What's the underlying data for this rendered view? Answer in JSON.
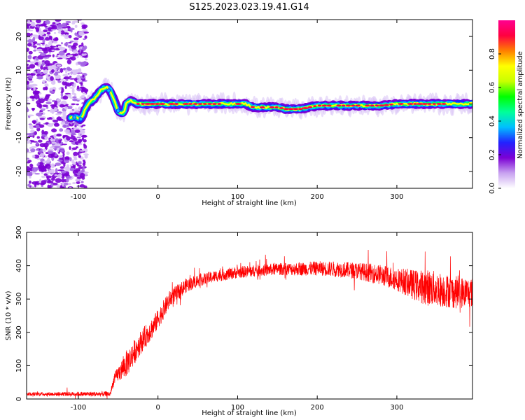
{
  "title": "S125.2023.023.19.41.G14",
  "chart_data": [
    {
      "type": "heatmap",
      "xlabel": "Height of straight line (km)",
      "ylabel": "Frequency (Hz)",
      "xlim": [
        -165,
        395
      ],
      "ylim": [
        -25,
        25
      ],
      "xticks": [
        -100,
        0,
        100,
        200,
        300
      ],
      "yticks": [
        -20,
        -10,
        0,
        10,
        20
      ],
      "grid": false,
      "noise_region_x": [
        -165,
        -90
      ],
      "ridge": {
        "x": [
          -110,
          -103,
          -97,
          -88,
          -80,
          -72,
          -65,
          -60,
          -55,
          -50,
          -45,
          -42,
          -40,
          -35,
          -25,
          0,
          50,
          100,
          110,
          120,
          150,
          160,
          180,
          200,
          220,
          250,
          280,
          300,
          340,
          395
        ],
        "y": [
          -4,
          -4,
          -4.5,
          0,
          1.5,
          4,
          5,
          4,
          1,
          -2,
          -3,
          -2,
          0,
          1,
          0,
          0,
          0,
          0,
          0,
          -1,
          -1,
          -1.5,
          -1.5,
          -0.5,
          -0.5,
          -0.5,
          -0.5,
          0,
          0,
          0
        ]
      },
      "colorbar": {
        "label": "Normalized spectral amplitude",
        "ticks": [
          0.0,
          0.2,
          0.4,
          0.6,
          0.8
        ],
        "tick_labels": [
          "0.0",
          "0.2",
          "0.4",
          "0.6",
          "0.8"
        ],
        "range": [
          0,
          1
        ],
        "colors": [
          "#ffffff",
          "#c8a2f0",
          "#7b00d4",
          "#2222ff",
          "#00bfff",
          "#00ff99",
          "#00ff00",
          "#c8ff00",
          "#ffff00",
          "#ff8000",
          "#ff0040",
          "#ff0090"
        ]
      }
    },
    {
      "type": "line",
      "xlabel": "Height of straight line (km)",
      "ylabel": "SNR (10 * v/v)",
      "xlim": [
        -165,
        395
      ],
      "ylim": [
        0,
        500
      ],
      "xticks": [
        -100,
        0,
        100,
        200,
        300
      ],
      "yticks": [
        0,
        100,
        200,
        300,
        400,
        500
      ],
      "grid": false,
      "line_color": "#ff0000",
      "trend_x": [
        -165,
        -60,
        -55,
        -45,
        -35,
        -25,
        -15,
        -5,
        5,
        15,
        25,
        35,
        50,
        75,
        100,
        125,
        150,
        175,
        200,
        225,
        250,
        275,
        300,
        325,
        350,
        375,
        395
      ],
      "trend_y": [
        15,
        15,
        60,
        90,
        120,
        160,
        190,
        220,
        260,
        300,
        320,
        340,
        355,
        370,
        380,
        385,
        390,
        390,
        392,
        390,
        385,
        375,
        360,
        340,
        330,
        320,
        320
      ],
      "noise_x": [
        -165,
        -60,
        -40,
        50,
        150,
        250,
        300,
        340,
        395
      ],
      "noise_y": [
        5,
        8,
        40,
        18,
        18,
        25,
        35,
        55,
        45
      ],
      "n_samples": 2400
    }
  ]
}
